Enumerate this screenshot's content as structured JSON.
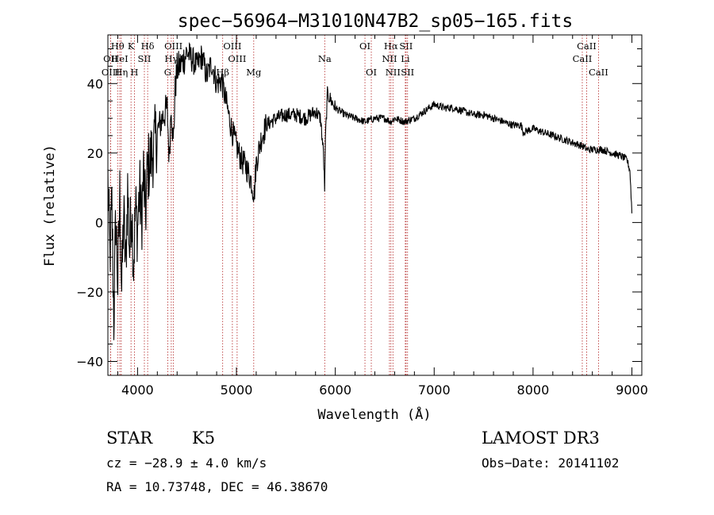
{
  "chart_data": {
    "type": "line",
    "title": "spec−56964−M31010N47B2_sp05−165.fits",
    "xlabel": "Wavelength (Å)",
    "ylabel": "Flux (relative)",
    "xlim": [
      3700,
      9100
    ],
    "ylim": [
      -44,
      54
    ],
    "xticks": [
      4000,
      5000,
      6000,
      7000,
      8000,
      9000
    ],
    "yticks": [
      -40,
      -20,
      0,
      20,
      40
    ],
    "xtick_labels": [
      "4000",
      "5000",
      "6000",
      "7000",
      "8000",
      "9000"
    ],
    "ytick_labels": [
      "−40",
      "−20",
      "0",
      "20",
      "40"
    ],
    "grid": false,
    "legend": "none",
    "series": [
      {
        "x": [
          3700,
          3720,
          3740,
          3760,
          3780,
          3800,
          3820,
          3840,
          3860,
          3880,
          3900,
          3920,
          3940,
          3960,
          3980,
          4000,
          4020,
          4040,
          4060,
          4080,
          4100,
          4150,
          4200,
          4250,
          4300,
          4320,
          4340,
          4360,
          4380,
          4400,
          4450,
          4500,
          4550,
          4600,
          4650,
          4700,
          4750,
          4800,
          4850,
          4870,
          4900,
          4950,
          5000,
          5050,
          5100,
          5150,
          5180,
          5200,
          5250,
          5300,
          5400,
          5500,
          5600,
          5700,
          5800,
          5850,
          5880,
          5893,
          5900,
          5920,
          6000,
          6100,
          6200,
          6300,
          6400,
          6500,
          6560,
          6600,
          6700,
          6800,
          6900,
          7000,
          7100,
          7200,
          7300,
          7400,
          7500,
          7600,
          7700,
          7800,
          7880,
          7900,
          8000,
          8100,
          8200,
          8300,
          8400,
          8500,
          8550,
          8600,
          8700,
          8800,
          8900,
          8950,
          8980,
          9000
        ],
        "values": [
          12,
          -10,
          5,
          -28,
          2,
          -18,
          8,
          -20,
          3,
          -14,
          10,
          -8,
          6,
          -12,
          4,
          -2,
          10,
          0,
          14,
          2,
          15,
          20,
          26,
          30,
          33,
          18,
          35,
          22,
          38,
          44,
          46,
          49,
          47,
          45,
          48,
          42,
          46,
          40,
          41,
          38,
          34,
          27,
          22,
          18,
          16,
          12,
          8,
          17,
          24,
          28,
          30,
          31,
          31,
          30,
          32,
          30,
          20,
          9,
          24,
          37,
          33,
          31,
          30,
          29,
          30,
          30,
          29,
          30,
          29,
          30,
          32,
          34,
          33,
          33,
          32,
          31,
          31,
          30,
          29,
          28,
          28,
          26,
          27,
          26,
          25,
          24,
          23,
          22,
          21,
          21,
          21,
          20,
          19,
          18,
          15,
          3
        ]
      }
    ],
    "lines": [
      {
        "label": "Hθ",
        "x": 3798,
        "row": 0
      },
      {
        "label": "OII",
        "x": 3727,
        "row": 1
      },
      {
        "label": "OIII",
        "x": 3727,
        "row": 2
      },
      {
        "label": "HeI",
        "x": 3820,
        "row": 1
      },
      {
        "label": "Hη",
        "x": 3835,
        "row": 2
      },
      {
        "label": "K",
        "x": 3934,
        "row": 0
      },
      {
        "label": "SII",
        "x": 4069,
        "row": 1
      },
      {
        "label": "H",
        "x": 3968,
        "row": 2
      },
      {
        "label": "Hδ",
        "x": 4102,
        "row": 0
      },
      {
        "label": "OIII",
        "x": 4363,
        "row": 0
      },
      {
        "label": "Hγ",
        "x": 4341,
        "row": 1
      },
      {
        "label": "G",
        "x": 4305,
        "row": 2
      },
      {
        "label": "Hβ",
        "x": 4861,
        "row": 2
      },
      {
        "label": "OIII",
        "x": 4959,
        "row": 0
      },
      {
        "label": "OIII",
        "x": 5007,
        "row": 1
      },
      {
        "label": "Mg",
        "x": 5175,
        "row": 2
      },
      {
        "label": "Na",
        "x": 5893,
        "row": 1
      },
      {
        "label": "OI",
        "x": 6300,
        "row": 0
      },
      {
        "label": "OI",
        "x": 6364,
        "row": 2
      },
      {
        "label": "Hα",
        "x": 6563,
        "row": 0
      },
      {
        "label": "NII",
        "x": 6548,
        "row": 1
      },
      {
        "label": "NII",
        "x": 6583,
        "row": 2
      },
      {
        "label": "SII",
        "x": 6716,
        "row": 0
      },
      {
        "label": "Li",
        "x": 6708,
        "row": 1
      },
      {
        "label": "SII",
        "x": 6731,
        "row": 2
      },
      {
        "label": "CaII",
        "x": 8542,
        "row": 0
      },
      {
        "label": "CaII",
        "x": 8498,
        "row": 1
      },
      {
        "label": "CaII",
        "x": 8662,
        "row": 2
      }
    ]
  },
  "info": {
    "class_label": "STAR",
    "subclass_label": "K5",
    "survey": "LAMOST DR3",
    "cz": "cz = −28.9 ± 4.0 km/s",
    "obs_date": "Obs−Date: 20141102",
    "coords": "RA =  10.73748, DEC =  46.38670"
  },
  "colors": {
    "spectrum": "#000000",
    "line_markers": "#b22222",
    "axes": "#000000",
    "background": "#ffffff"
  }
}
